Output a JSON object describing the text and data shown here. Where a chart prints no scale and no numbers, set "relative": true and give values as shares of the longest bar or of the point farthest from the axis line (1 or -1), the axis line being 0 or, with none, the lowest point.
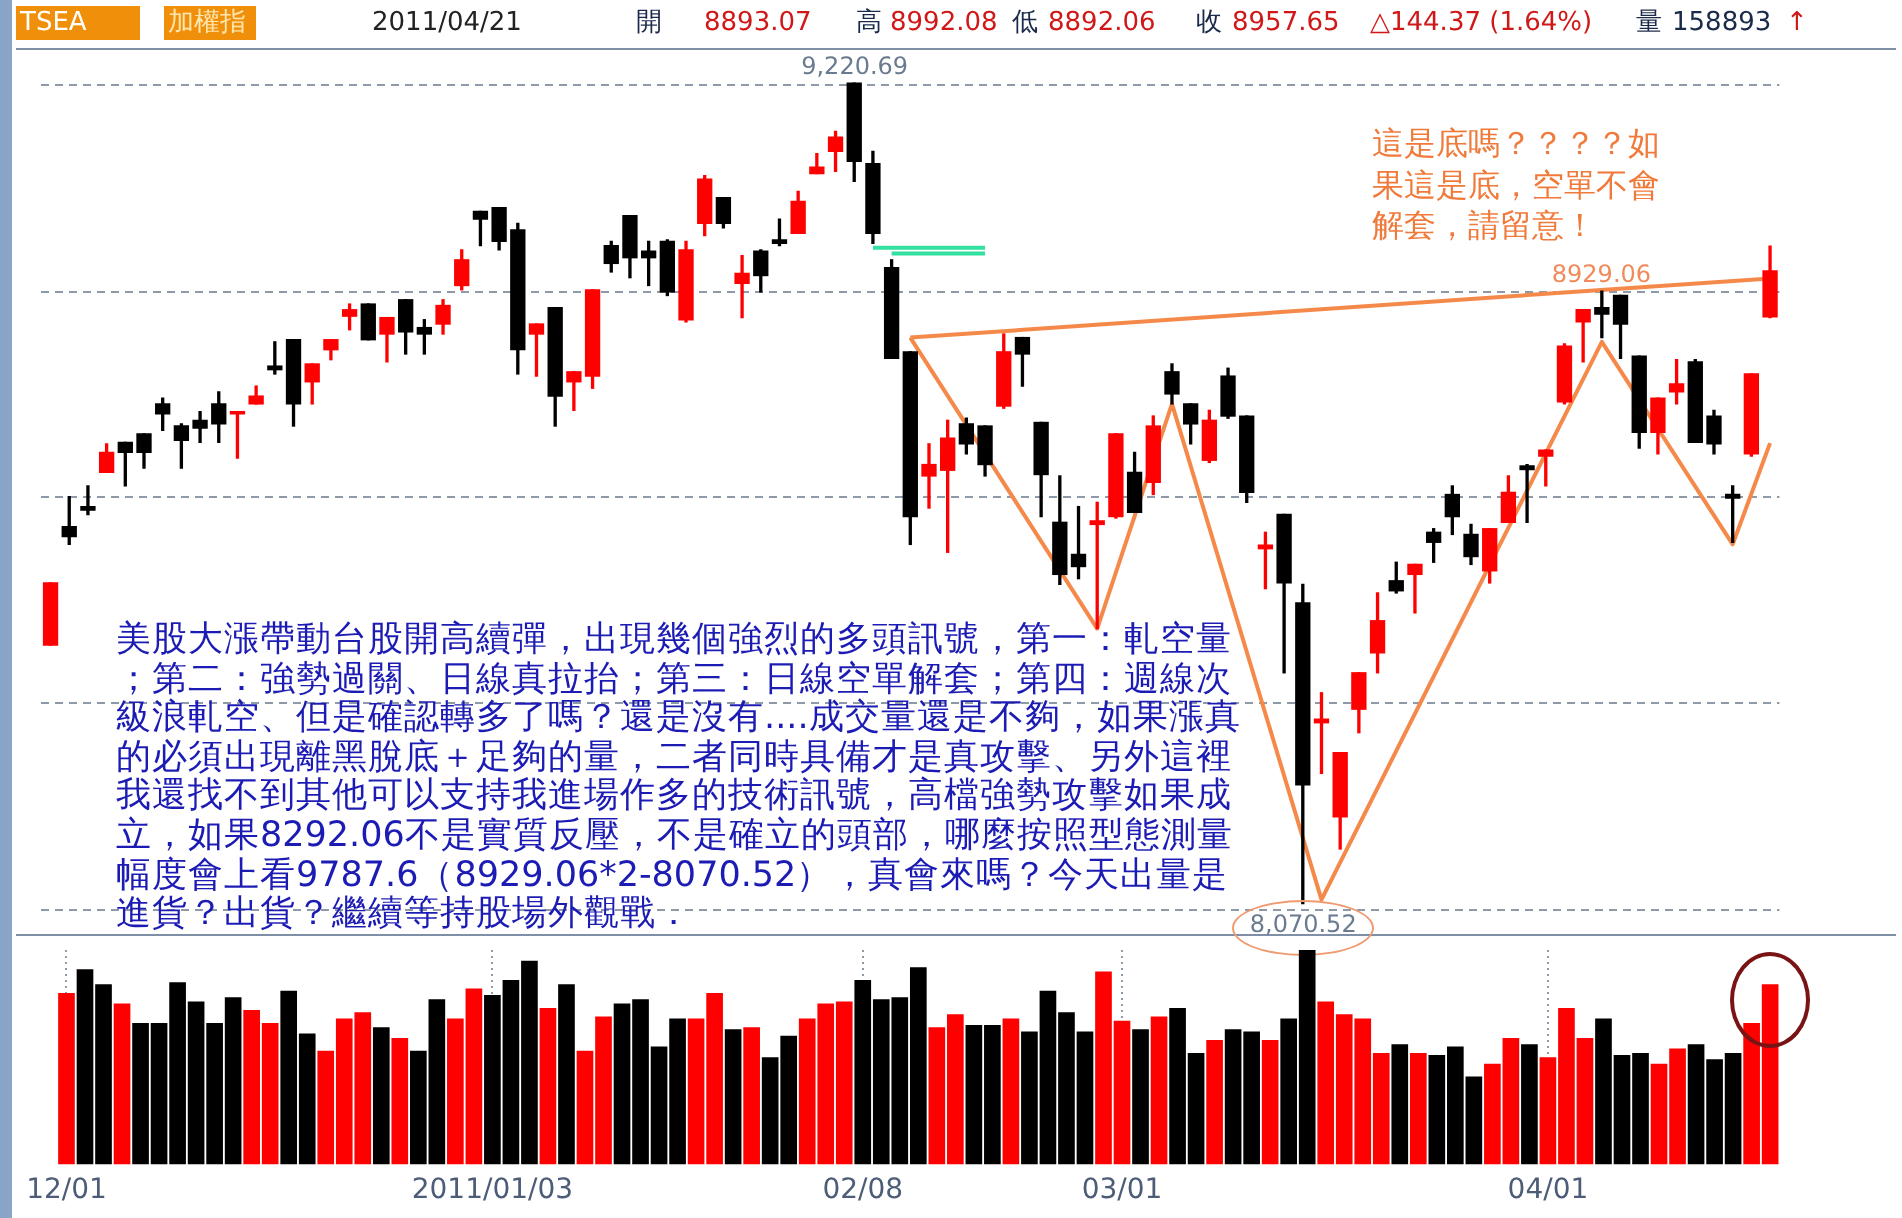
{
  "chart_data": [
    {
      "type": "candlestick",
      "categories": [
        null,
        null,
        null,
        null,
        null,
        null,
        null,
        null,
        null,
        null,
        null,
        null,
        null,
        null,
        null,
        null,
        null,
        null,
        null,
        null,
        null,
        null,
        null,
        null,
        null,
        null,
        null,
        null,
        null,
        null,
        null,
        null,
        null,
        null,
        null,
        null,
        null,
        null,
        null,
        null,
        null,
        null,
        null,
        null,
        null,
        null,
        null,
        null,
        null,
        null,
        null,
        null,
        null,
        null,
        null,
        null,
        null,
        null,
        null,
        null,
        null,
        null,
        null,
        null,
        null,
        null,
        null,
        null,
        null,
        null,
        null,
        null,
        null,
        null,
        null,
        null,
        null,
        null,
        null,
        null,
        null,
        null,
        null,
        null,
        null,
        null,
        null,
        null,
        null,
        null,
        null,
        null,
        null
      ],
      "ohlc": [
        [
          8433,
          8520,
          8433,
          8520
        ],
        [
          8599,
          8641,
          8574,
          8585
        ],
        [
          8627,
          8656,
          8616,
          8622
        ],
        [
          8675,
          8715,
          8675,
          8703
        ],
        [
          8717,
          8717,
          8656,
          8703
        ],
        [
          8729,
          8729,
          8681,
          8703
        ],
        [
          8771,
          8779,
          8734,
          8757
        ],
        [
          8740,
          8743,
          8681,
          8720
        ],
        [
          8748,
          8760,
          8717,
          8737
        ],
        [
          8771,
          8788,
          8717,
          8743
        ],
        [
          8757,
          8760,
          8695,
          8760
        ],
        [
          8771,
          8796,
          8771,
          8782
        ],
        [
          8824,
          8858,
          8813,
          8819
        ],
        [
          8861,
          8861,
          8740,
          8771
        ],
        [
          8802,
          8827,
          8771,
          8827
        ],
        [
          8847,
          8861,
          8833,
          8861
        ],
        [
          8894,
          8911,
          8875,
          8903
        ],
        [
          8911,
          8911,
          8861,
          8861
        ],
        [
          8869,
          8892,
          8830,
          8892
        ],
        [
          8917,
          8917,
          8841,
          8872
        ],
        [
          8878,
          8889,
          8841,
          8869
        ],
        [
          8883,
          8917,
          8869,
          8909
        ],
        [
          8937,
          8987,
          8931,
          8973
        ],
        [
          9041,
          9041,
          8993,
          9030
        ],
        [
          9046,
          9046,
          8987,
          8999
        ],
        [
          9015,
          9024,
          8813,
          8847
        ],
        [
          8869,
          8883,
          8810,
          8883
        ],
        [
          8906,
          8906,
          8740,
          8782
        ],
        [
          8802,
          8816,
          8762,
          8816
        ],
        [
          8810,
          8931,
          8793,
          8931
        ],
        [
          8993,
          8999,
          8956,
          8968
        ],
        [
          9035,
          9035,
          8948,
          8976
        ],
        [
          8985,
          8999,
          8937,
          8976
        ],
        [
          8999,
          9001,
          8923,
          8928
        ],
        [
          8889,
          8999,
          8886,
          8987
        ],
        [
          9024,
          9091,
          9007,
          9086
        ],
        [
          9060,
          9060,
          9018,
          9024
        ],
        [
          8940,
          8979,
          8892,
          8954
        ],
        [
          8985,
          8987,
          8928,
          8951
        ],
        [
          9001,
          9030,
          8993,
          8996
        ],
        [
          9010,
          9069,
          9010,
          9055
        ],
        [
          9094,
          9122,
          9094,
          9103
        ],
        [
          9125,
          9153,
          9097,
          9145
        ],
        [
          9220.69,
          9220.69,
          9083,
          9111
        ],
        [
          9108,
          9125,
          8996,
          9010
        ],
        [
          8962,
          8973,
          8835,
          8835
        ],
        [
          8844,
          8844,
          8574,
          8613
        ],
        [
          8670,
          8715,
          8625,
          8686
        ],
        [
          8678,
          8748,
          8563,
          8723
        ],
        [
          8743,
          8751,
          8701,
          8715
        ],
        [
          8740,
          8740,
          8670,
          8686
        ],
        [
          8768,
          8869,
          8765,
          8844
        ],
        [
          8864,
          8864,
          8796,
          8841
        ],
        [
          8745,
          8745,
          8613,
          8672
        ],
        [
          8605,
          8670,
          8518,
          8532
        ],
        [
          8560,
          8627,
          8526,
          8543
        ],
        [
          8602,
          8633,
          8456,
          8607
        ],
        [
          8613,
          8729,
          8611,
          8729
        ],
        [
          8675,
          8703,
          8619,
          8619
        ],
        [
          8661,
          8754,
          8644,
          8740
        ],
        [
          8816,
          8827,
          8771,
          8785
        ],
        [
          8771,
          8771,
          8715,
          8743
        ],
        [
          8692,
          8762,
          8689,
          8748
        ],
        [
          8810,
          8821,
          8751,
          8754
        ],
        [
          8754,
          8754,
          8633,
          8647
        ],
        [
          8568,
          8591,
          8512,
          8573
        ],
        [
          8616,
          8616,
          8394,
          8520
        ],
        [
          8492,
          8518,
          8070.52,
          8237
        ],
        [
          8324,
          8366,
          8253,
          8329
        ],
        [
          8192,
          8282,
          8147,
          8282
        ],
        [
          8343,
          8394,
          8310,
          8394
        ],
        [
          8422,
          8506,
          8394,
          8467
        ],
        [
          8523,
          8549,
          8506,
          8509
        ],
        [
          8532,
          8546,
          8478,
          8546
        ],
        [
          8591,
          8596,
          8549,
          8577
        ],
        [
          8644,
          8656,
          8588,
          8613
        ],
        [
          8588,
          8602,
          8546,
          8557
        ],
        [
          8537,
          8596,
          8520,
          8596
        ],
        [
          8605,
          8670,
          8605,
          8647
        ],
        [
          8684,
          8686,
          8605,
          8679
        ],
        [
          8698,
          8706,
          8656,
          8706
        ],
        [
          8774,
          8855,
          8771,
          8852
        ],
        [
          8886,
          8903,
          8830,
          8903
        ],
        [
          8906,
          8929.06,
          8864,
          8897
        ],
        [
          8923,
          8923,
          8835,
          8883
        ],
        [
          8838,
          8838,
          8709,
          8731
        ],
        [
          8731,
          8779,
          8701,
          8779
        ],
        [
          8788,
          8833,
          8771,
          8799
        ],
        [
          8830,
          8833,
          8717,
          8717
        ],
        [
          8754,
          8762,
          8701,
          8715
        ],
        [
          8644,
          8656,
          8577,
          8639
        ],
        [
          8701,
          8813,
          8698,
          8813
        ],
        [
          8893.07,
          8992.08,
          8892.06,
          8957.65
        ]
      ],
      "colors": [
        "#ff0000",
        "#000000",
        "#000000",
        "#ff0000",
        "#000000",
        "#000000",
        "#000000",
        "#000000",
        "#000000",
        "#000000",
        "#ff0000",
        "#ff0000",
        "#000000",
        "#000000",
        "#ff0000",
        "#ff0000",
        "#ff0000",
        "#000000",
        "#ff0000",
        "#000000",
        "#000000",
        "#ff0000",
        "#ff0000",
        "#000000",
        "#000000",
        "#000000",
        "#ff0000",
        "#000000",
        "#ff0000",
        "#ff0000",
        "#000000",
        "#000000",
        "#000000",
        "#000000",
        "#ff0000",
        "#ff0000",
        "#000000",
        "#ff0000",
        "#000000",
        "#000000",
        "#ff0000",
        "#ff0000",
        "#ff0000",
        "#000000",
        "#000000",
        "#000000",
        "#000000",
        "#ff0000",
        "#ff0000",
        "#000000",
        "#000000",
        "#ff0000",
        "#000000",
        "#000000",
        "#000000",
        "#000000",
        "#ff0000",
        "#ff0000",
        "#000000",
        "#ff0000",
        "#000000",
        "#000000",
        "#ff0000",
        "#000000",
        "#000000",
        "#ff0000",
        "#000000",
        "#000000",
        "#ff0000",
        "#ff0000",
        "#ff0000",
        "#ff0000",
        "#000000",
        "#ff0000",
        "#000000",
        "#000000",
        "#000000",
        "#ff0000",
        "#ff0000",
        "#000000",
        "#ff0000",
        "#ff0000",
        "#ff0000",
        "#000000",
        "#000000",
        "#000000",
        "#ff0000",
        "#ff0000",
        "#000000",
        "#000000",
        "#000000",
        "#ff0000",
        "#ff0000"
      ],
      "series": [
        {
          "type": "line",
          "color": "#f5894a",
          "values": [
            null,
            null,
            null,
            null,
            null,
            null,
            null,
            null,
            null,
            null,
            null,
            null,
            null,
            null,
            null,
            null,
            null,
            null,
            null,
            null,
            null,
            null,
            null,
            null,
            null,
            null,
            null,
            null,
            null,
            null,
            null,
            null,
            null,
            null,
            null,
            null,
            null,
            null,
            null,
            null,
            null,
            null,
            null,
            null,
            null,
            null,
            8864,
            null,
            null,
            null,
            null,
            null,
            null,
            null,
            null,
            null,
            8456,
            null,
            null,
            null,
            8771,
            null,
            null,
            null,
            null,
            null,
            null,
            null,
            8076,
            null,
            null,
            null,
            null,
            null,
            null,
            null,
            null,
            null,
            null,
            null,
            null,
            null,
            null,
            8858,
            null,
            null,
            null,
            null,
            null,
            null,
            8574,
            null,
            8716
          ]
        },
        {
          "type": "line",
          "color": "#f5894a",
          "values": [
            null,
            null,
            null,
            null,
            null,
            null,
            null,
            null,
            null,
            null,
            null,
            null,
            null,
            null,
            null,
            null,
            null,
            null,
            null,
            null,
            null,
            null,
            null,
            null,
            null,
            null,
            null,
            null,
            null,
            null,
            null,
            null,
            null,
            null,
            null,
            null,
            null,
            null,
            null,
            null,
            null,
            null,
            null,
            null,
            null,
            null,
            8864,
            null,
            null,
            null,
            null,
            null,
            null,
            null,
            null,
            null,
            null,
            null,
            null,
            null,
            null,
            null,
            null,
            null,
            null,
            null,
            null,
            null,
            null,
            null,
            null,
            null,
            null,
            null,
            null,
            null,
            null,
            null,
            null,
            null,
            null,
            null,
            null,
            null,
            null,
            null,
            null,
            null,
            null,
            null,
            null,
            null,
            8947
          ]
        },
        {
          "type": "line",
          "color": "#33e0a0",
          "values": [
            null,
            null,
            null,
            null,
            null,
            null,
            null,
            null,
            null,
            null,
            null,
            null,
            null,
            null,
            null,
            null,
            null,
            null,
            null,
            null,
            null,
            null,
            null,
            null,
            null,
            null,
            null,
            null,
            null,
            null,
            null,
            null,
            null,
            null,
            null,
            null,
            null,
            null,
            null,
            null,
            null,
            null,
            null,
            null,
            8990,
            null,
            null,
            null,
            null,
            null,
            8990,
            null,
            null,
            null,
            null,
            null,
            null,
            null,
            null,
            null,
            null,
            null,
            null,
            null,
            null,
            null,
            null,
            null,
            null,
            null,
            null,
            null,
            null,
            null,
            null,
            null,
            null,
            null,
            null,
            null,
            null,
            null,
            null,
            null,
            null,
            null,
            null,
            null,
            null,
            null,
            null,
            null,
            null
          ]
        },
        {
          "type": "line",
          "color": "#33e0a0",
          "values": [
            null,
            null,
            null,
            null,
            null,
            null,
            null,
            null,
            null,
            null,
            null,
            null,
            null,
            null,
            null,
            null,
            null,
            null,
            null,
            null,
            null,
            null,
            null,
            null,
            null,
            null,
            null,
            null,
            null,
            null,
            null,
            null,
            null,
            null,
            null,
            null,
            null,
            null,
            null,
            null,
            null,
            null,
            null,
            null,
            null,
            8982,
            null,
            null,
            null,
            null,
            8982,
            null,
            null,
            null,
            null,
            null,
            null,
            null,
            null,
            null,
            null,
            null,
            null,
            null,
            null,
            null,
            null,
            null,
            null,
            null,
            null,
            null,
            null,
            null,
            null,
            null,
            null,
            null,
            null,
            null,
            null,
            null,
            null,
            null,
            null,
            null,
            null,
            null,
            null,
            null,
            null,
            null,
            null
          ]
        }
      ],
      "ylim": [
        8025,
        9270
      ],
      "yticks": [
        {
          "value": 8062,
          "label": null
        },
        {
          "value": 8352,
          "label": null
        },
        {
          "value": 8641,
          "label": null
        },
        {
          "value": 8928,
          "label": null
        },
        {
          "value": 9218,
          "label": null
        }
      ],
      "grid": true,
      "tick_labels": false,
      "annotations": [
        "TSEA",
        "加權指",
        "2011/04/21",
        "開",
        "8893.07",
        "高",
        "8992.08",
        "低",
        "8892.06",
        "收",
        "8957.65",
        "△144.37 (1.64%)",
        "量",
        "158893",
        "↑",
        "美股大漲帶動台股開高續彈，出現幾個強烈的多頭訊號，第一：軋空量；第二：強勢過關、日線真拉抬；第三：日線空單解套；第四：週線次級浪軋空、但是確認轉多了嗎？還是沒有....成交量還是不夠，如果漲真的必須出現離黑脫底＋足夠的量，二者同時具備才是真攻擊、另外這裡我還找不到其他可以支持我進場作多的技術訊號，高檔強勢攻擊如果成立，如果8292.06不是實質反壓，不是確立的頭部，哪麼按照型態測量幅度會上看9787.6（8929.06*2-8070.52），真會來嗎？今天出量是進貨？出貨？繼續等持股場外觀戰．",
        "這是底嗎？？？？如果這是底，空單不會解套，請留意！",
        {
          "text": "9,220.69",
          "y": 9220.69
        },
        {
          "text": "8929.06",
          "y": 8929.06
        },
        {
          "text": "8,070.52",
          "y": 8070.52
        }
      ]
    },
    {
      "type": "bar",
      "relative": true,
      "categories": [
        "12/01",
        null,
        null,
        null,
        null,
        null,
        null,
        null,
        null,
        null,
        null,
        null,
        null,
        null,
        null,
        null,
        null,
        null,
        null,
        null,
        null,
        null,
        null,
        "2011/01/03",
        null,
        null,
        null,
        null,
        null,
        null,
        null,
        null,
        null,
        null,
        null,
        null,
        null,
        null,
        null,
        null,
        null,
        null,
        null,
        "02/08",
        null,
        null,
        null,
        null,
        null,
        null,
        null,
        null,
        null,
        null,
        null,
        null,
        null,
        "03/01",
        null,
        null,
        null,
        null,
        null,
        null,
        null,
        null,
        null,
        null,
        null,
        null,
        null,
        null,
        null,
        null,
        null,
        null,
        null,
        null,
        null,
        null,
        "04/01",
        null,
        null,
        null,
        null,
        null,
        null,
        null,
        null,
        null,
        null,
        null,
        null
      ],
      "values": [
        0.8,
        0.91,
        0.84,
        0.75,
        0.66,
        0.66,
        0.85,
        0.76,
        0.66,
        0.78,
        0.72,
        0.66,
        0.81,
        0.61,
        0.53,
        0.68,
        0.71,
        0.64,
        0.59,
        0.53,
        0.77,
        0.68,
        0.82,
        0.79,
        0.86,
        0.95,
        0.73,
        0.84,
        0.53,
        0.69,
        0.75,
        0.77,
        0.55,
        0.68,
        0.68,
        0.8,
        0.63,
        0.64,
        0.5,
        0.6,
        0.68,
        0.75,
        0.76,
        0.86,
        0.77,
        0.78,
        0.92,
        0.64,
        0.7,
        0.65,
        0.65,
        0.68,
        0.62,
        0.81,
        0.71,
        0.62,
        0.9,
        0.67,
        0.63,
        0.69,
        0.73,
        0.52,
        0.58,
        0.63,
        0.62,
        0.58,
        0.68,
        1,
        0.76,
        0.7,
        0.68,
        0.52,
        0.56,
        0.52,
        0.51,
        0.55,
        0.41,
        0.47,
        0.59,
        0.56,
        0.5,
        0.73,
        0.59,
        0.68,
        0.51,
        0.52,
        0.47,
        0.54,
        0.56,
        0.49,
        0.52,
        0.66,
        0.84
      ],
      "colors": [
        "#ff0000",
        "#000000",
        "#000000",
        "#ff0000",
        "#000000",
        "#000000",
        "#000000",
        "#000000",
        "#000000",
        "#000000",
        "#ff0000",
        "#ff0000",
        "#000000",
        "#000000",
        "#ff0000",
        "#ff0000",
        "#ff0000",
        "#000000",
        "#ff0000",
        "#000000",
        "#000000",
        "#ff0000",
        "#ff0000",
        "#000000",
        "#000000",
        "#000000",
        "#ff0000",
        "#000000",
        "#ff0000",
        "#ff0000",
        "#000000",
        "#000000",
        "#000000",
        "#000000",
        "#ff0000",
        "#ff0000",
        "#000000",
        "#ff0000",
        "#000000",
        "#000000",
        "#ff0000",
        "#ff0000",
        "#ff0000",
        "#000000",
        "#000000",
        "#000000",
        "#000000",
        "#ff0000",
        "#ff0000",
        "#000000",
        "#000000",
        "#ff0000",
        "#000000",
        "#000000",
        "#000000",
        "#000000",
        "#ff0000",
        "#ff0000",
        "#000000",
        "#ff0000",
        "#000000",
        "#000000",
        "#ff0000",
        "#000000",
        "#000000",
        "#ff0000",
        "#000000",
        "#000000",
        "#ff0000",
        "#ff0000",
        "#ff0000",
        "#ff0000",
        "#000000",
        "#ff0000",
        "#000000",
        "#000000",
        "#000000",
        "#ff0000",
        "#ff0000",
        "#000000",
        "#ff0000",
        "#ff0000",
        "#ff0000",
        "#000000",
        "#000000",
        "#000000",
        "#ff0000",
        "#ff0000",
        "#000000",
        "#000000",
        "#000000",
        "#ff0000",
        "#ff0000"
      ],
      "grid": "x",
      "tick_labels": "x"
    }
  ]
}
